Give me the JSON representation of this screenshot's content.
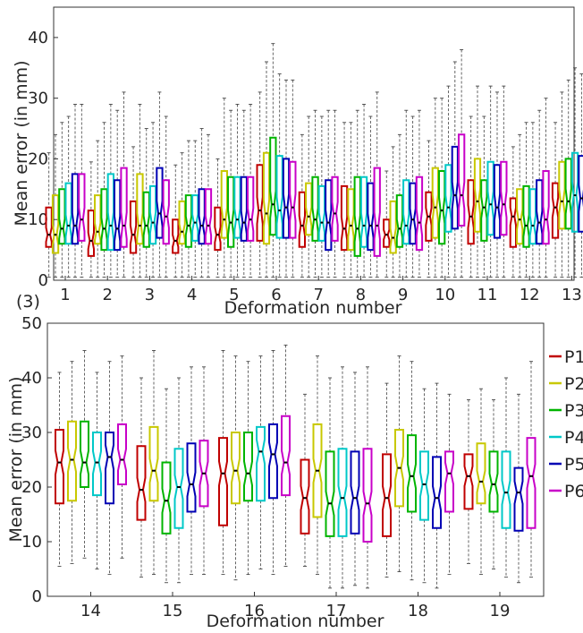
{
  "panel_label": "(3)",
  "colors": {
    "P1": "#c00000",
    "P2": "#c8c800",
    "P3": "#00b400",
    "P4": "#00c8c8",
    "P5": "#0000b4",
    "P6": "#c800c8"
  },
  "legend": [
    "P1",
    "P2",
    "P3",
    "P4",
    "P5",
    "P6"
  ],
  "chart_data": [
    {
      "type": "box",
      "xlabel": "Deformation number",
      "ylabel": "Mean error (in mm)",
      "ylim": [
        0,
        45
      ],
      "yticks": [
        0,
        10,
        20,
        30,
        40
      ],
      "categories": [
        "1",
        "2",
        "3",
        "4",
        "5",
        "6",
        "7",
        "8",
        "9",
        "10",
        "11",
        "12",
        "13"
      ],
      "series": [
        {
          "name": "P1",
          "boxes": [
            [
              5.5,
              7.5,
              12,
              0.5,
              21
            ],
            [
              4,
              6.5,
              11.5,
              0.5,
              19.5
            ],
            [
              4.5,
              7.5,
              13,
              0.5,
              22
            ],
            [
              4.5,
              6.5,
              10,
              0.5,
              19
            ],
            [
              5,
              7.5,
              12,
              0.5,
              20
            ],
            [
              6.5,
              11.5,
              19,
              0.5,
              31
            ],
            [
              5.5,
              9,
              14.5,
              0.5,
              24
            ],
            [
              5,
              8.5,
              15.5,
              0.5,
              26
            ],
            [
              5.5,
              7.5,
              10,
              0.5,
              18
            ],
            [
              6.5,
              10.5,
              14.5,
              0.5,
              23
            ],
            [
              6,
              10.5,
              16.5,
              0.5,
              27
            ],
            [
              5.5,
              10.5,
              13.5,
              0.5,
              22
            ],
            [
              7,
              12,
              16,
              0.5,
              26
            ]
          ]
        },
        {
          "name": "P2",
          "boxes": [
            [
              4.5,
              7.5,
              14,
              0.5,
              24
            ],
            [
              6,
              8,
              14,
              0.5,
              23
            ],
            [
              6,
              9,
              17.5,
              0.5,
              29
            ],
            [
              6,
              8,
              13,
              0.5,
              21
            ],
            [
              7,
              10,
              18,
              0.5,
              30
            ],
            [
              6,
              11,
              21,
              0.5,
              36
            ],
            [
              7.5,
              10.5,
              16,
              0.5,
              27
            ],
            [
              5,
              9,
              15,
              0.5,
              26
            ],
            [
              4.5,
              7,
              13,
              0.5,
              22
            ],
            [
              7,
              12,
              18.5,
              0.5,
              30
            ],
            [
              8,
              13,
              20,
              0.5,
              32
            ],
            [
              6,
              10,
              15,
              0.5,
              24
            ],
            [
              8.5,
              13,
              19.5,
              0.5,
              31
            ]
          ]
        },
        {
          "name": "P3",
          "boxes": [
            [
              6,
              8.5,
              15,
              0.5,
              26
            ],
            [
              5,
              8.5,
              15,
              0.5,
              26
            ],
            [
              5.5,
              9,
              14.5,
              0.5,
              25
            ],
            [
              5.5,
              9,
              14,
              0.5,
              23
            ],
            [
              5.5,
              9.5,
              17,
              0.5,
              28
            ],
            [
              7.5,
              12.5,
              23.5,
              0.5,
              39
            ],
            [
              6.5,
              10,
              17,
              0.5,
              28
            ],
            [
              4,
              8.5,
              17,
              0.5,
              28
            ],
            [
              5.5,
              8.5,
              14,
              0.5,
              24
            ],
            [
              6,
              11.5,
              18,
              0.5,
              30
            ],
            [
              6.5,
              12,
              16.5,
              0.5,
              27
            ],
            [
              5.5,
              9,
              15.5,
              0.5,
              26
            ],
            [
              8.5,
              13,
              20,
              0.5,
              33
            ]
          ]
        },
        {
          "name": "P4",
          "boxes": [
            [
              6,
              9,
              16,
              0.5,
              27
            ],
            [
              5,
              9,
              17.5,
              0.5,
              29
            ],
            [
              6,
              9.5,
              15.5,
              0.5,
              26
            ],
            [
              6.5,
              9.5,
              14,
              0.5,
              23
            ],
            [
              7,
              10,
              17,
              0.5,
              29
            ],
            [
              7,
              11.5,
              20.5,
              0.5,
              34
            ],
            [
              6.5,
              9.5,
              15.5,
              0.5,
              27
            ],
            [
              5.5,
              9,
              17,
              0.5,
              29
            ],
            [
              6,
              9,
              16.5,
              0.5,
              28
            ],
            [
              8,
              12,
              19,
              0.5,
              32
            ],
            [
              7.5,
              12.5,
              19.5,
              0.5,
              32
            ],
            [
              6,
              9,
              15,
              0.5,
              26
            ],
            [
              8,
              14,
              21,
              0.5,
              35
            ]
          ]
        },
        {
          "name": "P5",
          "boxes": [
            [
              6,
              9,
              17.5,
              0.5,
              29
            ],
            [
              5,
              8.5,
              16.5,
              0.5,
              28
            ],
            [
              7,
              11,
              18.5,
              0.5,
              31
            ],
            [
              6,
              9,
              15,
              0.5,
              25
            ],
            [
              6.5,
              9.5,
              17,
              0.5,
              28
            ],
            [
              7,
              12,
              20,
              0.5,
              33
            ],
            [
              5,
              9.5,
              16.5,
              0.5,
              28
            ],
            [
              5,
              9,
              16,
              0.5,
              27
            ],
            [
              6,
              10,
              16,
              0.5,
              27
            ],
            [
              8.5,
              14,
              22,
              0.5,
              36
            ],
            [
              7,
              12,
              19,
              0.5,
              31
            ],
            [
              6,
              9.5,
              16.5,
              0.5,
              28
            ],
            [
              8,
              13.5,
              20.5,
              0.5,
              34
            ]
          ]
        },
        {
          "name": "P6",
          "boxes": [
            [
              6.5,
              10,
              17.5,
              0.5,
              29
            ],
            [
              5.5,
              9,
              18.5,
              0.5,
              31
            ],
            [
              6,
              10.5,
              16.5,
              0.5,
              27
            ],
            [
              6,
              9,
              15,
              0.5,
              24
            ],
            [
              6.5,
              10,
              17,
              0.5,
              29
            ],
            [
              7,
              12,
              19.5,
              0.5,
              33
            ],
            [
              6.5,
              11,
              17,
              0.5,
              28
            ],
            [
              4,
              9,
              18.5,
              0.5,
              31
            ],
            [
              5,
              9.5,
              17,
              0.5,
              28
            ],
            [
              9,
              14,
              24,
              0.5,
              38
            ],
            [
              7.5,
              12.5,
              19.5,
              0.5,
              32
            ],
            [
              6,
              10,
              18,
              0.5,
              30
            ],
            [
              8.5,
              13,
              21.5,
              0.5,
              35
            ]
          ]
        }
      ]
    },
    {
      "type": "box",
      "xlabel": "Deformation number",
      "ylabel": "Mean error (in mm)",
      "ylim": [
        0,
        50
      ],
      "yticks": [
        0,
        10,
        20,
        30,
        40,
        50
      ],
      "categories": [
        "14",
        "15",
        "16",
        "17",
        "18",
        "19"
      ],
      "series": [
        {
          "name": "P1",
          "boxes": [
            [
              17,
              24.5,
              30.5,
              5.5,
              41
            ],
            [
              14,
              19.5,
              27.5,
              3.5,
              40
            ],
            [
              13,
              22.5,
              29,
              4,
              45
            ],
            [
              11.5,
              18,
              25,
              5.5,
              37
            ],
            [
              11,
              18,
              26,
              3.5,
              39
            ],
            [
              16,
              22,
              26,
              6,
              36
            ]
          ]
        },
        {
          "name": "P2",
          "boxes": [
            [
              17.5,
              25,
              32,
              6,
              43
            ],
            [
              17.5,
              23,
              31,
              4,
              45
            ],
            [
              17,
              23,
              30,
              3,
              44
            ],
            [
              14.5,
              23,
              31.5,
              4,
              44
            ],
            [
              16.5,
              23.5,
              30.5,
              4.5,
              44
            ],
            [
              17,
              21,
              28,
              4,
              38
            ]
          ]
        },
        {
          "name": "P3",
          "boxes": [
            [
              20,
              24.5,
              32,
              7,
              45
            ],
            [
              11.5,
              17.5,
              24.5,
              2.5,
              38
            ],
            [
              17.5,
              22.5,
              30,
              4,
              43
            ],
            [
              11,
              17,
              26.5,
              1.5,
              40
            ],
            [
              15.5,
              22,
              29.5,
              3,
              43
            ],
            [
              15.5,
              20.5,
              26.5,
              5,
              36
            ]
          ]
        },
        {
          "name": "P4",
          "boxes": [
            [
              18.5,
              24.5,
              30,
              5,
              41
            ],
            [
              12.5,
              20,
              27,
              2.5,
              40
            ],
            [
              17.5,
              26.5,
              31,
              5,
              44
            ],
            [
              11,
              18,
              27,
              1.5,
              42
            ],
            [
              14,
              20.5,
              26.5,
              2.5,
              38
            ],
            [
              12.5,
              19,
              26.5,
              3.5,
              40
            ]
          ]
        },
        {
          "name": "P5",
          "boxes": [
            [
              17,
              25.5,
              30,
              4,
              43
            ],
            [
              15.5,
              20.5,
              28,
              4,
              42
            ],
            [
              18,
              26,
              31.5,
              4,
              45
            ],
            [
              11.5,
              18,
              26.5,
              2,
              41
            ],
            [
              12.5,
              18,
              25.5,
              1.5,
              39
            ],
            [
              12,
              19,
              23.5,
              2.5,
              37
            ]
          ]
        },
        {
          "name": "P6",
          "boxes": [
            [
              20.5,
              25,
              31.5,
              7,
              44
            ],
            [
              16.5,
              22.5,
              28.5,
              4,
              42
            ],
            [
              18.5,
              24.5,
              33,
              5.5,
              46
            ],
            [
              10,
              17,
              27,
              1.5,
              42
            ],
            [
              15.5,
              22.5,
              26.5,
              4,
              37
            ],
            [
              12.5,
              22,
              29,
              3.5,
              43
            ]
          ]
        }
      ]
    }
  ]
}
